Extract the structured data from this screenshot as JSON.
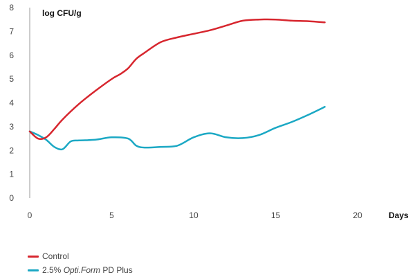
{
  "chart_data": {
    "type": "line",
    "title": "",
    "xlabel": "Days",
    "ylabel": "log CFU/g",
    "xlim": [
      0,
      20
    ],
    "ylim": [
      0,
      8
    ],
    "x_ticks": [
      0,
      5,
      10,
      15,
      20
    ],
    "y_ticks": [
      0,
      1,
      2,
      3,
      4,
      5,
      6,
      7,
      8
    ],
    "grid": false,
    "legend_position": "bottom-left",
    "series": [
      {
        "name": "Control",
        "color": "#d7262e",
        "x": [
          0,
          0.5,
          1,
          1.5,
          2,
          3,
          4,
          5,
          5.5,
          6,
          6.5,
          7,
          8,
          9,
          10,
          11,
          12,
          13,
          14,
          15,
          16,
          17,
          18
        ],
        "y": [
          2.8,
          2.5,
          2.55,
          2.9,
          3.3,
          3.95,
          4.5,
          5.0,
          5.2,
          5.45,
          5.85,
          6.1,
          6.55,
          6.75,
          6.9,
          7.05,
          7.25,
          7.45,
          7.5,
          7.5,
          7.45,
          7.43,
          7.38
        ]
      },
      {
        "name": "2.5% Opti.Form PD Plus",
        "color": "#1ba8c4",
        "x": [
          0,
          0.5,
          1,
          1.5,
          2,
          2.5,
          3,
          4,
          5,
          6,
          6.5,
          7,
          8,
          9,
          10,
          11,
          12,
          13,
          14,
          15,
          16,
          17,
          18
        ],
        "y": [
          2.8,
          2.65,
          2.45,
          2.15,
          2.05,
          2.38,
          2.42,
          2.45,
          2.55,
          2.5,
          2.2,
          2.12,
          2.15,
          2.2,
          2.55,
          2.72,
          2.55,
          2.52,
          2.65,
          2.95,
          3.2,
          3.5,
          3.83
        ]
      }
    ]
  },
  "legend": {
    "items": [
      {
        "color": "#d7262e",
        "label": "Control"
      },
      {
        "color": "#1ba8c4",
        "label_prefix": "2.5% ",
        "label_italic": "Opti.Form",
        "label_suffix": " PD Plus"
      }
    ]
  }
}
